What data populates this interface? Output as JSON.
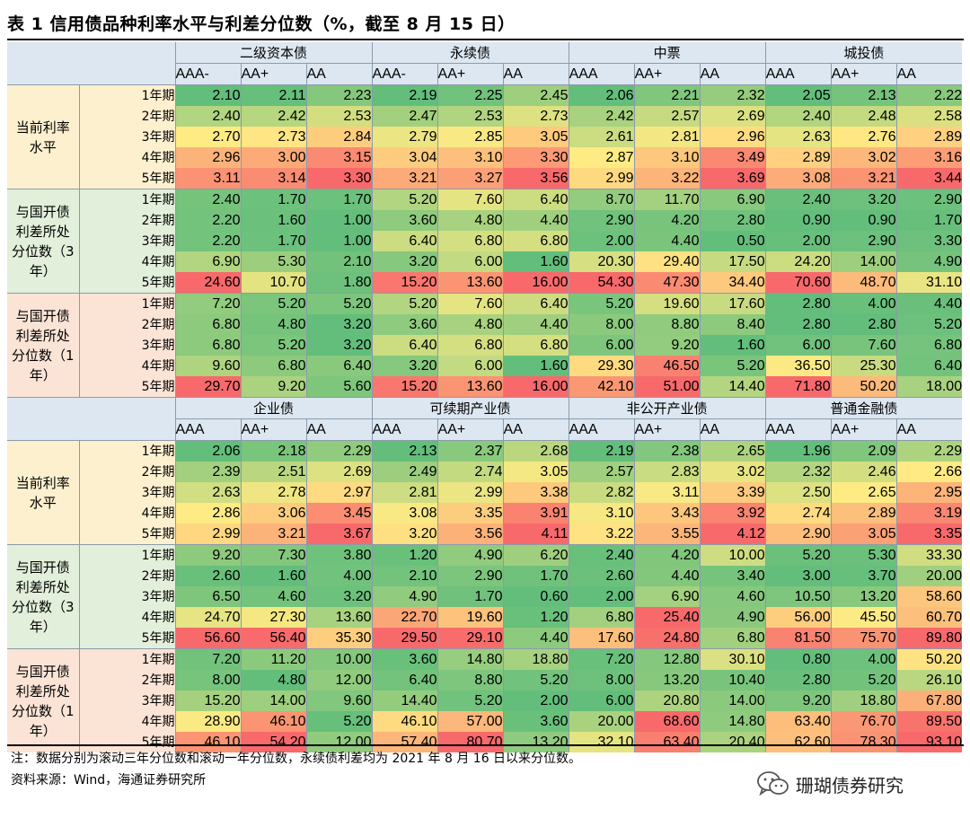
{
  "title": "表 1 信用债品种利率水平与利差分位数（%，截至 8 月 15 日）",
  "note": "注：数据分别为滚动三年分位数和滚动一年分位数，永续债利差均为 2021 年 8 月 16 日以来分位数。",
  "source": "资料来源：Wind，海通证券研究所",
  "watermark": "珊瑚债券研究",
  "terms": [
    "1年期",
    "2年期",
    "3年期",
    "4年期",
    "5年期"
  ],
  "block_colors": {
    "level": "#fdf0cf",
    "pct3": "#e2efda",
    "pct1": "#fbe4d6",
    "header": "#dde7f1"
  },
  "heat_colors": {
    "low": "#63be7b",
    "mid": "#ffeb84",
    "high": "#f8696b"
  },
  "sections": [
    {
      "groups": [
        {
          "name": "二级资本债",
          "ratings": [
            "AAA-",
            "AA+",
            "AA"
          ]
        },
        {
          "name": "永续债",
          "ratings": [
            "AAA-",
            "AA+",
            "AA"
          ]
        },
        {
          "name": "中票",
          "ratings": [
            "AAA",
            "AA+",
            "AA"
          ]
        },
        {
          "name": "城投债",
          "ratings": [
            "AAA",
            "AA+",
            "AA"
          ]
        }
      ],
      "blocks": [
        {
          "label": "当前利率\n水平",
          "kind": "level",
          "rows": [
            [
              "2.10",
              "2.11",
              "2.23",
              "2.19",
              "2.25",
              "2.45",
              "2.06",
              "2.21",
              "2.32",
              "2.05",
              "2.13",
              "2.22"
            ],
            [
              "2.40",
              "2.42",
              "2.53",
              "2.47",
              "2.53",
              "2.73",
              "2.42",
              "2.57",
              "2.69",
              "2.40",
              "2.48",
              "2.58"
            ],
            [
              "2.70",
              "2.73",
              "2.84",
              "2.79",
              "2.85",
              "3.05",
              "2.61",
              "2.81",
              "2.96",
              "2.63",
              "2.76",
              "2.89"
            ],
            [
              "2.96",
              "3.00",
              "3.15",
              "3.04",
              "3.10",
              "3.30",
              "2.87",
              "3.10",
              "3.49",
              "2.89",
              "3.02",
              "3.16"
            ],
            [
              "3.11",
              "3.14",
              "3.30",
              "3.21",
              "3.27",
              "3.56",
              "2.99",
              "3.22",
              "3.69",
              "3.08",
              "3.21",
              "3.44"
            ]
          ]
        },
        {
          "label": "与国开债\n利差所处\n分位数（3\n年）",
          "kind": "pct3",
          "rows": [
            [
              "2.40",
              "1.70",
              "1.70",
              "5.20",
              "7.60",
              "6.40",
              "8.70",
              "11.70",
              "6.90",
              "2.40",
              "3.20",
              "2.90"
            ],
            [
              "2.20",
              "1.60",
              "1.00",
              "3.60",
              "4.80",
              "4.40",
              "2.90",
              "4.20",
              "2.80",
              "0.90",
              "0.90",
              "1.70"
            ],
            [
              "2.20",
              "1.70",
              "1.00",
              "6.40",
              "6.80",
              "6.80",
              "2.00",
              "4.40",
              "0.50",
              "2.00",
              "2.90",
              "3.30"
            ],
            [
              "6.90",
              "5.30",
              "2.10",
              "3.20",
              "6.00",
              "1.60",
              "20.30",
              "29.40",
              "17.50",
              "24.20",
              "14.00",
              "4.90"
            ],
            [
              "24.60",
              "10.70",
              "1.80",
              "15.20",
              "13.60",
              "16.00",
              "54.30",
              "47.30",
              "34.40",
              "70.60",
              "48.70",
              "31.10"
            ]
          ]
        },
        {
          "label": "与国开债\n利差所处\n分位数（1\n年）",
          "kind": "pct1",
          "rows": [
            [
              "7.20",
              "5.20",
              "5.20",
              "5.20",
              "7.60",
              "6.40",
              "5.20",
              "19.60",
              "17.60",
              "2.80",
              "4.00",
              "4.40"
            ],
            [
              "6.80",
              "4.80",
              "3.20",
              "3.60",
              "4.80",
              "4.40",
              "8.00",
              "8.80",
              "8.40",
              "2.80",
              "2.80",
              "5.20"
            ],
            [
              "6.80",
              "5.20",
              "3.20",
              "6.40",
              "6.80",
              "6.80",
              "6.00",
              "9.20",
              "1.60",
              "6.00",
              "7.60",
              "6.80"
            ],
            [
              "9.60",
              "6.80",
              "6.40",
              "3.20",
              "6.00",
              "1.60",
              "29.30",
              "46.50",
              "5.20",
              "36.50",
              "25.30",
              "6.40"
            ],
            [
              "29.70",
              "9.20",
              "5.60",
              "15.20",
              "13.60",
              "16.00",
              "42.10",
              "51.00",
              "14.40",
              "71.80",
              "50.20",
              "18.00"
            ]
          ]
        }
      ]
    },
    {
      "groups": [
        {
          "name": "企业债",
          "ratings": [
            "AAA",
            "AA+",
            "AA"
          ]
        },
        {
          "name": "可续期产业债",
          "ratings": [
            "AAA",
            "AA+",
            "AA"
          ]
        },
        {
          "name": "非公开产业债",
          "ratings": [
            "AAA",
            "AA+",
            "AA"
          ]
        },
        {
          "name": "普通金融债",
          "ratings": [
            "AAA",
            "AA+",
            "AA"
          ]
        }
      ],
      "blocks": [
        {
          "label": "当前利率\n水平",
          "kind": "level",
          "rows": [
            [
              "2.06",
              "2.18",
              "2.29",
              "2.13",
              "2.37",
              "2.68",
              "2.19",
              "2.38",
              "2.65",
              "1.96",
              "2.09",
              "2.29"
            ],
            [
              "2.39",
              "2.51",
              "2.69",
              "2.49",
              "2.74",
              "3.05",
              "2.57",
              "2.83",
              "3.02",
              "2.32",
              "2.46",
              "2.66"
            ],
            [
              "2.63",
              "2.78",
              "2.97",
              "2.81",
              "2.99",
              "3.38",
              "2.82",
              "3.11",
              "3.39",
              "2.50",
              "2.65",
              "2.95"
            ],
            [
              "2.86",
              "3.06",
              "3.45",
              "3.08",
              "3.35",
              "3.91",
              "3.10",
              "3.43",
              "3.92",
              "2.74",
              "2.89",
              "3.19"
            ],
            [
              "2.99",
              "3.21",
              "3.67",
              "3.20",
              "3.56",
              "4.11",
              "3.22",
              "3.55",
              "4.12",
              "2.90",
              "3.05",
              "3.35"
            ]
          ]
        },
        {
          "label": "与国开债\n利差所处\n分位数（3\n年）",
          "kind": "pct3",
          "rows": [
            [
              "9.20",
              "7.30",
              "3.80",
              "1.20",
              "4.90",
              "6.20",
              "2.40",
              "4.20",
              "10.00",
              "5.20",
              "5.30",
              "33.30"
            ],
            [
              "2.60",
              "1.60",
              "4.00",
              "2.10",
              "2.90",
              "1.70",
              "2.60",
              "4.40",
              "3.40",
              "3.00",
              "3.70",
              "20.00"
            ],
            [
              "6.50",
              "4.60",
              "3.20",
              "4.90",
              "1.70",
              "0.60",
              "2.00",
              "6.90",
              "4.60",
              "10.50",
              "13.20",
              "58.60"
            ],
            [
              "24.70",
              "27.30",
              "13.60",
              "22.70",
              "19.60",
              "1.20",
              "6.80",
              "25.40",
              "4.90",
              "56.00",
              "45.50",
              "60.70"
            ],
            [
              "56.60",
              "56.40",
              "35.30",
              "29.50",
              "29.10",
              "4.40",
              "17.60",
              "24.80",
              "6.80",
              "81.50",
              "75.70",
              "89.80"
            ]
          ]
        },
        {
          "label": "与国开债\n利差所处\n分位数（1\n年）",
          "kind": "pct1",
          "rows": [
            [
              "7.20",
              "11.20",
              "10.00",
              "3.60",
              "14.80",
              "18.80",
              "7.20",
              "12.80",
              "30.10",
              "0.80",
              "4.00",
              "50.20"
            ],
            [
              "8.00",
              "4.80",
              "12.00",
              "6.40",
              "8.80",
              "5.20",
              "8.00",
              "13.20",
              "10.40",
              "2.80",
              "5.20",
              "26.10"
            ],
            [
              "15.20",
              "14.00",
              "9.60",
              "14.40",
              "5.20",
              "2.00",
              "6.00",
              "20.80",
              "14.00",
              "9.20",
              "18.80",
              "67.80"
            ],
            [
              "28.90",
              "46.10",
              "5.20",
              "46.10",
              "57.00",
              "3.60",
              "20.00",
              "68.60",
              "14.80",
              "63.40",
              "76.70",
              "89.50"
            ],
            [
              "46.10",
              "54.20",
              "12.00",
              "57.40",
              "80.70",
              "13.20",
              "32.10",
              "63.40",
              "20.40",
              "62.60",
              "78.30",
              "93.10"
            ]
          ]
        }
      ]
    }
  ]
}
